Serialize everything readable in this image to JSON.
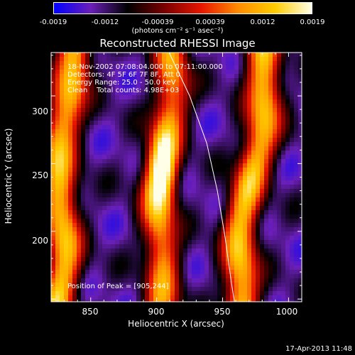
{
  "colorbar": {
    "tick_labels": [
      "-0.0019",
      "-0.0012",
      "-0.00039",
      "0.00039",
      "0.0012",
      "0.0019"
    ],
    "tick_values": [
      -0.0019,
      -0.0012,
      -0.00039,
      0.00039,
      0.0012,
      0.0019
    ],
    "units": "(photons cm⁻² s⁻¹ asec⁻²)",
    "colormap": [
      "#0000ff",
      "#6b1fb8",
      "#000000",
      "#7a0000",
      "#e81600",
      "#ff8c00",
      "#ffcc00",
      "#ffffe8"
    ]
  },
  "chart_data": {
    "type": "heatmap",
    "title": "Reconstructed RHESSI Image",
    "xlabel": "Heliocentric X (arcsec)",
    "ylabel": "Heliocentric Y (arcsec)",
    "xlim": [
      820,
      1010
    ],
    "ylim": [
      148,
      332
    ],
    "xticks": [
      850,
      900,
      950,
      1000
    ],
    "yticks": [
      200,
      250,
      300
    ],
    "annotations": [
      "18-Nov-2002 07:08:04.000 to 07:11:00.000",
      "Detectors: 4F 5F 6F 7F 8F, Att 0",
      "Energy Range: 25.0 - 50.0 keV",
      "Clean    Total counts: 4.98E+03"
    ],
    "peak_label": "Position of Peak = [905,244]",
    "peak": [
      905,
      244
    ],
    "bright_ridges_x": [
      829,
      905,
      972
    ],
    "dark_troughs_x": [
      865,
      938,
      997
    ],
    "limb_curve": [
      [
        908,
        335
      ],
      [
        925,
        300
      ],
      [
        938,
        265
      ],
      [
        946,
        230
      ],
      [
        952,
        195
      ],
      [
        957,
        160
      ],
      [
        959,
        148
      ]
    ]
  },
  "timestamp": "17-Apr-2013 11:48"
}
